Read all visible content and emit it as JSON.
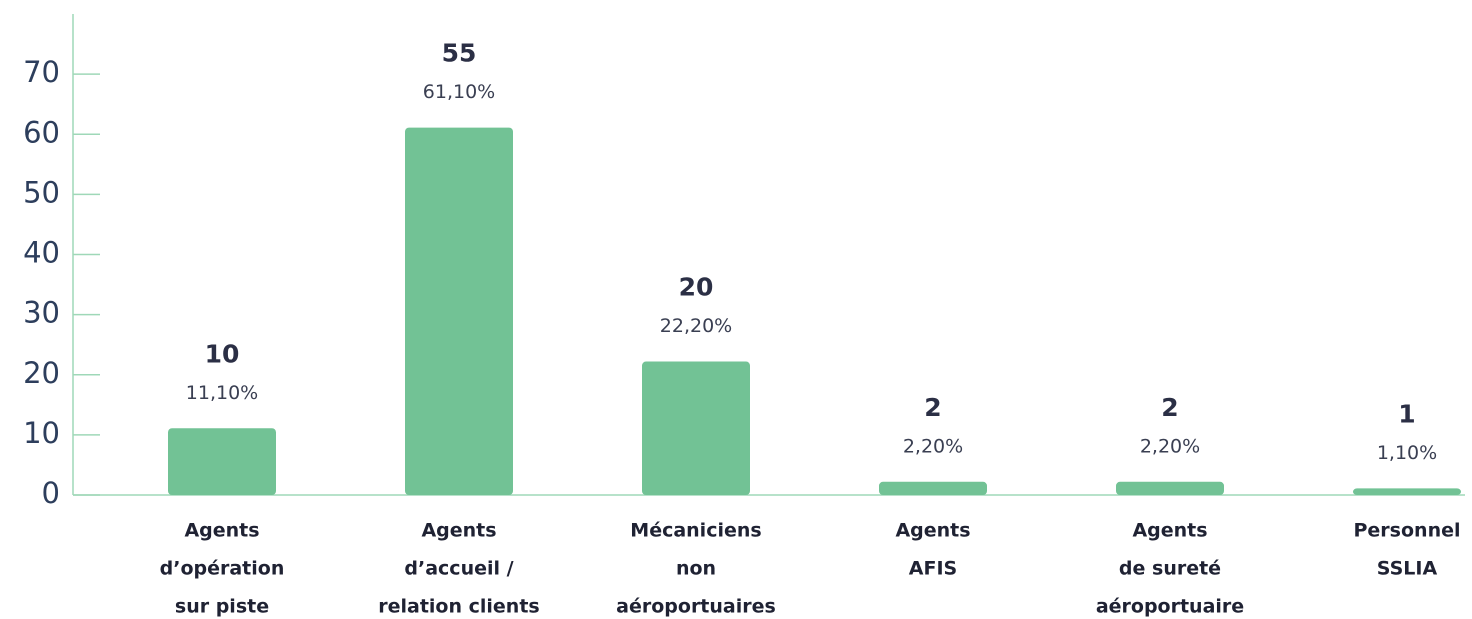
{
  "chart_data": {
    "type": "bar",
    "categories": [
      [
        "Agents",
        "d’opération",
        "sur piste"
      ],
      [
        "Agents",
        "d’accueil /",
        "relation clients"
      ],
      [
        "Mécaniciens",
        "non",
        "aéroportuaires"
      ],
      [
        "Agents",
        "AFIS"
      ],
      [
        "Agents",
        "de sureté",
        "aéroportuaire"
      ],
      [
        "Personnel",
        "SSLIA"
      ]
    ],
    "values": [
      11.1,
      61.1,
      22.2,
      2.2,
      2.2,
      1.1
    ],
    "value_labels": [
      "11,10%",
      "61,10%",
      "22,20%",
      "2,20%",
      "2,20%",
      "1,10%"
    ],
    "counts": [
      10,
      55,
      20,
      2,
      2,
      1
    ],
    "color": "#72c295",
    "ylim": [
      0,
      80
    ],
    "yticks": [
      0,
      10,
      20,
      30,
      40,
      50,
      60,
      70
    ]
  }
}
